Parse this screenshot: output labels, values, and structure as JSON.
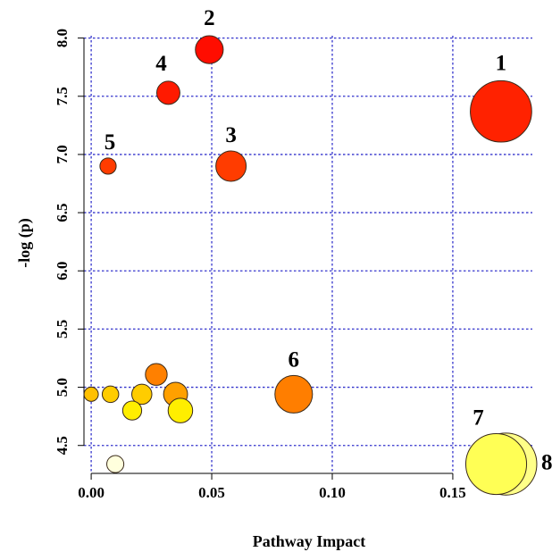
{
  "chart_data": {
    "type": "scatter",
    "title": "",
    "xlabel": "Pathway Impact",
    "ylabel": "-log (p)",
    "xlim": [
      -0.003,
      0.183
    ],
    "ylim": [
      4.26,
      8.02
    ],
    "x_ticks": [
      0.0,
      0.05,
      0.1,
      0.15
    ],
    "x_tick_labels": [
      "0.00",
      "0.05",
      "0.10",
      "0.15"
    ],
    "y_ticks": [
      4.5,
      5.0,
      5.5,
      6.0,
      6.5,
      7.0,
      7.5,
      8.0
    ],
    "y_tick_labels": [
      "4.5",
      "5.0",
      "5.5",
      "6.0",
      "6.5",
      "7.0",
      "7.5",
      "8.0"
    ],
    "grid": true,
    "grid_color": "#3333cc",
    "size_encoding": "pathway impact",
    "color_encoding": "-log (p)",
    "points": [
      {
        "label": "1",
        "x": 0.17,
        "y": 7.37,
        "color": "#ff2200"
      },
      {
        "label": "2",
        "x": 0.049,
        "y": 7.9,
        "color": "#ff0d00"
      },
      {
        "label": "3",
        "x": 0.058,
        "y": 6.9,
        "color": "#ff3c00"
      },
      {
        "label": "4",
        "x": 0.032,
        "y": 7.53,
        "color": "#ff1a00"
      },
      {
        "label": "5",
        "x": 0.007,
        "y": 6.9,
        "color": "#ff3c00"
      },
      {
        "label": "6",
        "x": 0.084,
        "y": 4.94,
        "color": "#ff7e00"
      },
      {
        "label": "",
        "x": 0.027,
        "y": 5.11,
        "color": "#ff8000"
      },
      {
        "label": "",
        "x": 0.0,
        "y": 4.94,
        "color": "#ffc000"
      },
      {
        "label": "",
        "x": 0.008,
        "y": 4.94,
        "color": "#ffcc00"
      },
      {
        "label": "",
        "x": 0.021,
        "y": 4.94,
        "color": "#ffcc00"
      },
      {
        "label": "",
        "x": 0.035,
        "y": 4.94,
        "color": "#ffa000"
      },
      {
        "label": "",
        "x": 0.017,
        "y": 4.8,
        "color": "#ffee00"
      },
      {
        "label": "",
        "x": 0.037,
        "y": 4.8,
        "color": "#ffee00"
      },
      {
        "label": "",
        "x": 0.01,
        "y": 4.34,
        "color": "#ffffdd"
      },
      {
        "label": "8",
        "x": 0.172,
        "y": 4.34,
        "color": "#ffff88"
      },
      {
        "label": "7",
        "x": 0.168,
        "y": 4.34,
        "color": "#ffff55"
      }
    ]
  }
}
